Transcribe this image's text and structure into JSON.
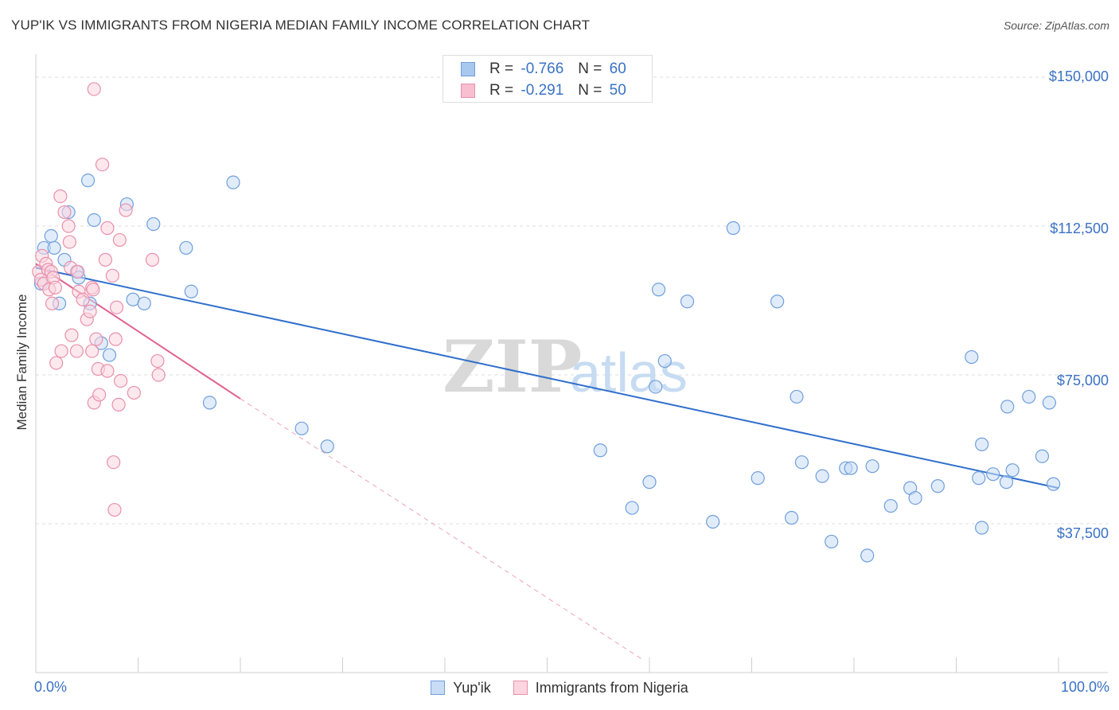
{
  "header": {
    "title": "YUP'IK VS IMMIGRANTS FROM NIGERIA MEDIAN FAMILY INCOME CORRELATION CHART",
    "source": "Source: ZipAtlas.com"
  },
  "watermark": {
    "zip": "ZIP",
    "atlas": "atlas"
  },
  "legend": {
    "rows": [
      {
        "r_label": "R =",
        "r_value": "-0.766",
        "n_label": "N =",
        "n_value": "60",
        "color": "#a9c8f0",
        "stroke": "#6f9fdc"
      },
      {
        "r_label": "R =",
        "r_value": "-0.291",
        "n_label": "N =",
        "n_value": "50",
        "color": "#f8bfd0",
        "stroke": "#e890ab"
      }
    ]
  },
  "bottom_legend": {
    "items": [
      {
        "label": "Yup'ik",
        "color": "#c9dcf5",
        "stroke": "#6f9fdc"
      },
      {
        "label": "Immigrants from Nigeria",
        "color": "#fcd5e0",
        "stroke": "#e890ab"
      }
    ]
  },
  "axes": {
    "ylabel": "Median Family Income",
    "x_min_label": "0.0%",
    "x_max_label": "100.0%",
    "y_ticks": [
      "$150,000",
      "$112,500",
      "$75,000",
      "$37,500"
    ]
  },
  "chart_data": {
    "type": "scatter",
    "title": "YUP'IK VS IMMIGRANTS FROM NIGERIA MEDIAN FAMILY INCOME CORRELATION CHART",
    "xlabel": "",
    "ylabel": "Median Family Income",
    "xlim": [
      0,
      100
    ],
    "ylim": [
      0,
      150000
    ],
    "y_ticks": [
      37500,
      75000,
      112500,
      150000
    ],
    "grid": true,
    "series": [
      {
        "name": "Yup'ik",
        "color": "#6f9fdc",
        "fill": "#c9dcf5",
        "R": -0.766,
        "N": 60,
        "trend": {
          "x": [
            0,
            100
          ],
          "y": [
            102000,
            46500
          ],
          "dashed_extension": false
        },
        "points": [
          [
            0.5,
            98000
          ],
          [
            0.8,
            107000
          ],
          [
            1.5,
            110000
          ],
          [
            1.8,
            107000
          ],
          [
            2.3,
            93000
          ],
          [
            2.8,
            104000
          ],
          [
            3.2,
            116000
          ],
          [
            4.0,
            101000
          ],
          [
            4.2,
            99500
          ],
          [
            5.3,
            93000
          ],
          [
            5.1,
            124000
          ],
          [
            5.7,
            114000
          ],
          [
            6.4,
            83000
          ],
          [
            7.2,
            80000
          ],
          [
            8.9,
            118000
          ],
          [
            9.5,
            94000
          ],
          [
            10.6,
            93000
          ],
          [
            11.5,
            113000
          ],
          [
            14.7,
            107000
          ],
          [
            15.2,
            96000
          ],
          [
            17.0,
            68000
          ],
          [
            19.3,
            123500
          ],
          [
            26.0,
            61500
          ],
          [
            28.5,
            57000
          ],
          [
            55.2,
            56000
          ],
          [
            58.3,
            41500
          ],
          [
            60.0,
            48000
          ],
          [
            60.6,
            72000
          ],
          [
            60.9,
            96500
          ],
          [
            61.5,
            78500
          ],
          [
            63.7,
            93500
          ],
          [
            66.2,
            38000
          ],
          [
            68.2,
            112000
          ],
          [
            70.6,
            49000
          ],
          [
            72.5,
            93500
          ],
          [
            73.9,
            39000
          ],
          [
            74.4,
            69500
          ],
          [
            74.9,
            53000
          ],
          [
            76.9,
            49500
          ],
          [
            77.8,
            33000
          ],
          [
            79.2,
            51500
          ],
          [
            79.7,
            51500
          ],
          [
            81.3,
            29500
          ],
          [
            81.8,
            52000
          ],
          [
            83.6,
            42000
          ],
          [
            85.5,
            46500
          ],
          [
            86.0,
            44000
          ],
          [
            88.2,
            47000
          ],
          [
            91.5,
            79500
          ],
          [
            92.2,
            49000
          ],
          [
            92.5,
            36500
          ],
          [
            92.5,
            57500
          ],
          [
            93.6,
            50000
          ],
          [
            94.9,
            48000
          ],
          [
            95.0,
            67000
          ],
          [
            95.5,
            51000
          ],
          [
            97.1,
            69500
          ],
          [
            98.4,
            54500
          ],
          [
            99.1,
            68000
          ],
          [
            99.5,
            47500
          ]
        ]
      },
      {
        "name": "Immigrants from Nigeria",
        "color": "#e890ab",
        "fill": "#fcd5e0",
        "R": -0.291,
        "N": 50,
        "trend": {
          "x": [
            0,
            20
          ],
          "y": [
            103000,
            69000
          ],
          "dashed_extension": true,
          "dashed_to": [
            59.5,
            3000
          ]
        },
        "points": [
          [
            0.3,
            101000
          ],
          [
            0.5,
            99000
          ],
          [
            0.6,
            105000
          ],
          [
            0.8,
            98000
          ],
          [
            1.0,
            103000
          ],
          [
            1.2,
            101500
          ],
          [
            1.3,
            96500
          ],
          [
            1.5,
            101000
          ],
          [
            1.6,
            93000
          ],
          [
            1.7,
            99500
          ],
          [
            1.9,
            97000
          ],
          [
            2.0,
            78000
          ],
          [
            2.4,
            120000
          ],
          [
            2.5,
            81000
          ],
          [
            2.8,
            116000
          ],
          [
            3.2,
            112500
          ],
          [
            3.3,
            108500
          ],
          [
            3.4,
            102000
          ],
          [
            3.5,
            85000
          ],
          [
            4.0,
            81000
          ],
          [
            4.1,
            101000
          ],
          [
            4.2,
            96000
          ],
          [
            4.6,
            94000
          ],
          [
            5.0,
            89000
          ],
          [
            5.3,
            91000
          ],
          [
            5.5,
            97000
          ],
          [
            5.5,
            81000
          ],
          [
            5.6,
            96500
          ],
          [
            5.7,
            68000
          ],
          [
            5.9,
            84000
          ],
          [
            6.1,
            76500
          ],
          [
            6.2,
            70000
          ],
          [
            6.5,
            128000
          ],
          [
            6.8,
            104000
          ],
          [
            7.0,
            76000
          ],
          [
            7.0,
            112000
          ],
          [
            7.5,
            100000
          ],
          [
            7.6,
            53000
          ],
          [
            7.7,
            41000
          ],
          [
            7.8,
            84000
          ],
          [
            7.9,
            92000
          ],
          [
            8.1,
            67500
          ],
          [
            8.2,
            109000
          ],
          [
            8.3,
            73500
          ],
          [
            8.8,
            116500
          ],
          [
            9.6,
            70500
          ],
          [
            11.4,
            104000
          ],
          [
            11.9,
            78500
          ],
          [
            12.0,
            75000
          ],
          [
            5.7,
            147000
          ]
        ]
      }
    ]
  }
}
